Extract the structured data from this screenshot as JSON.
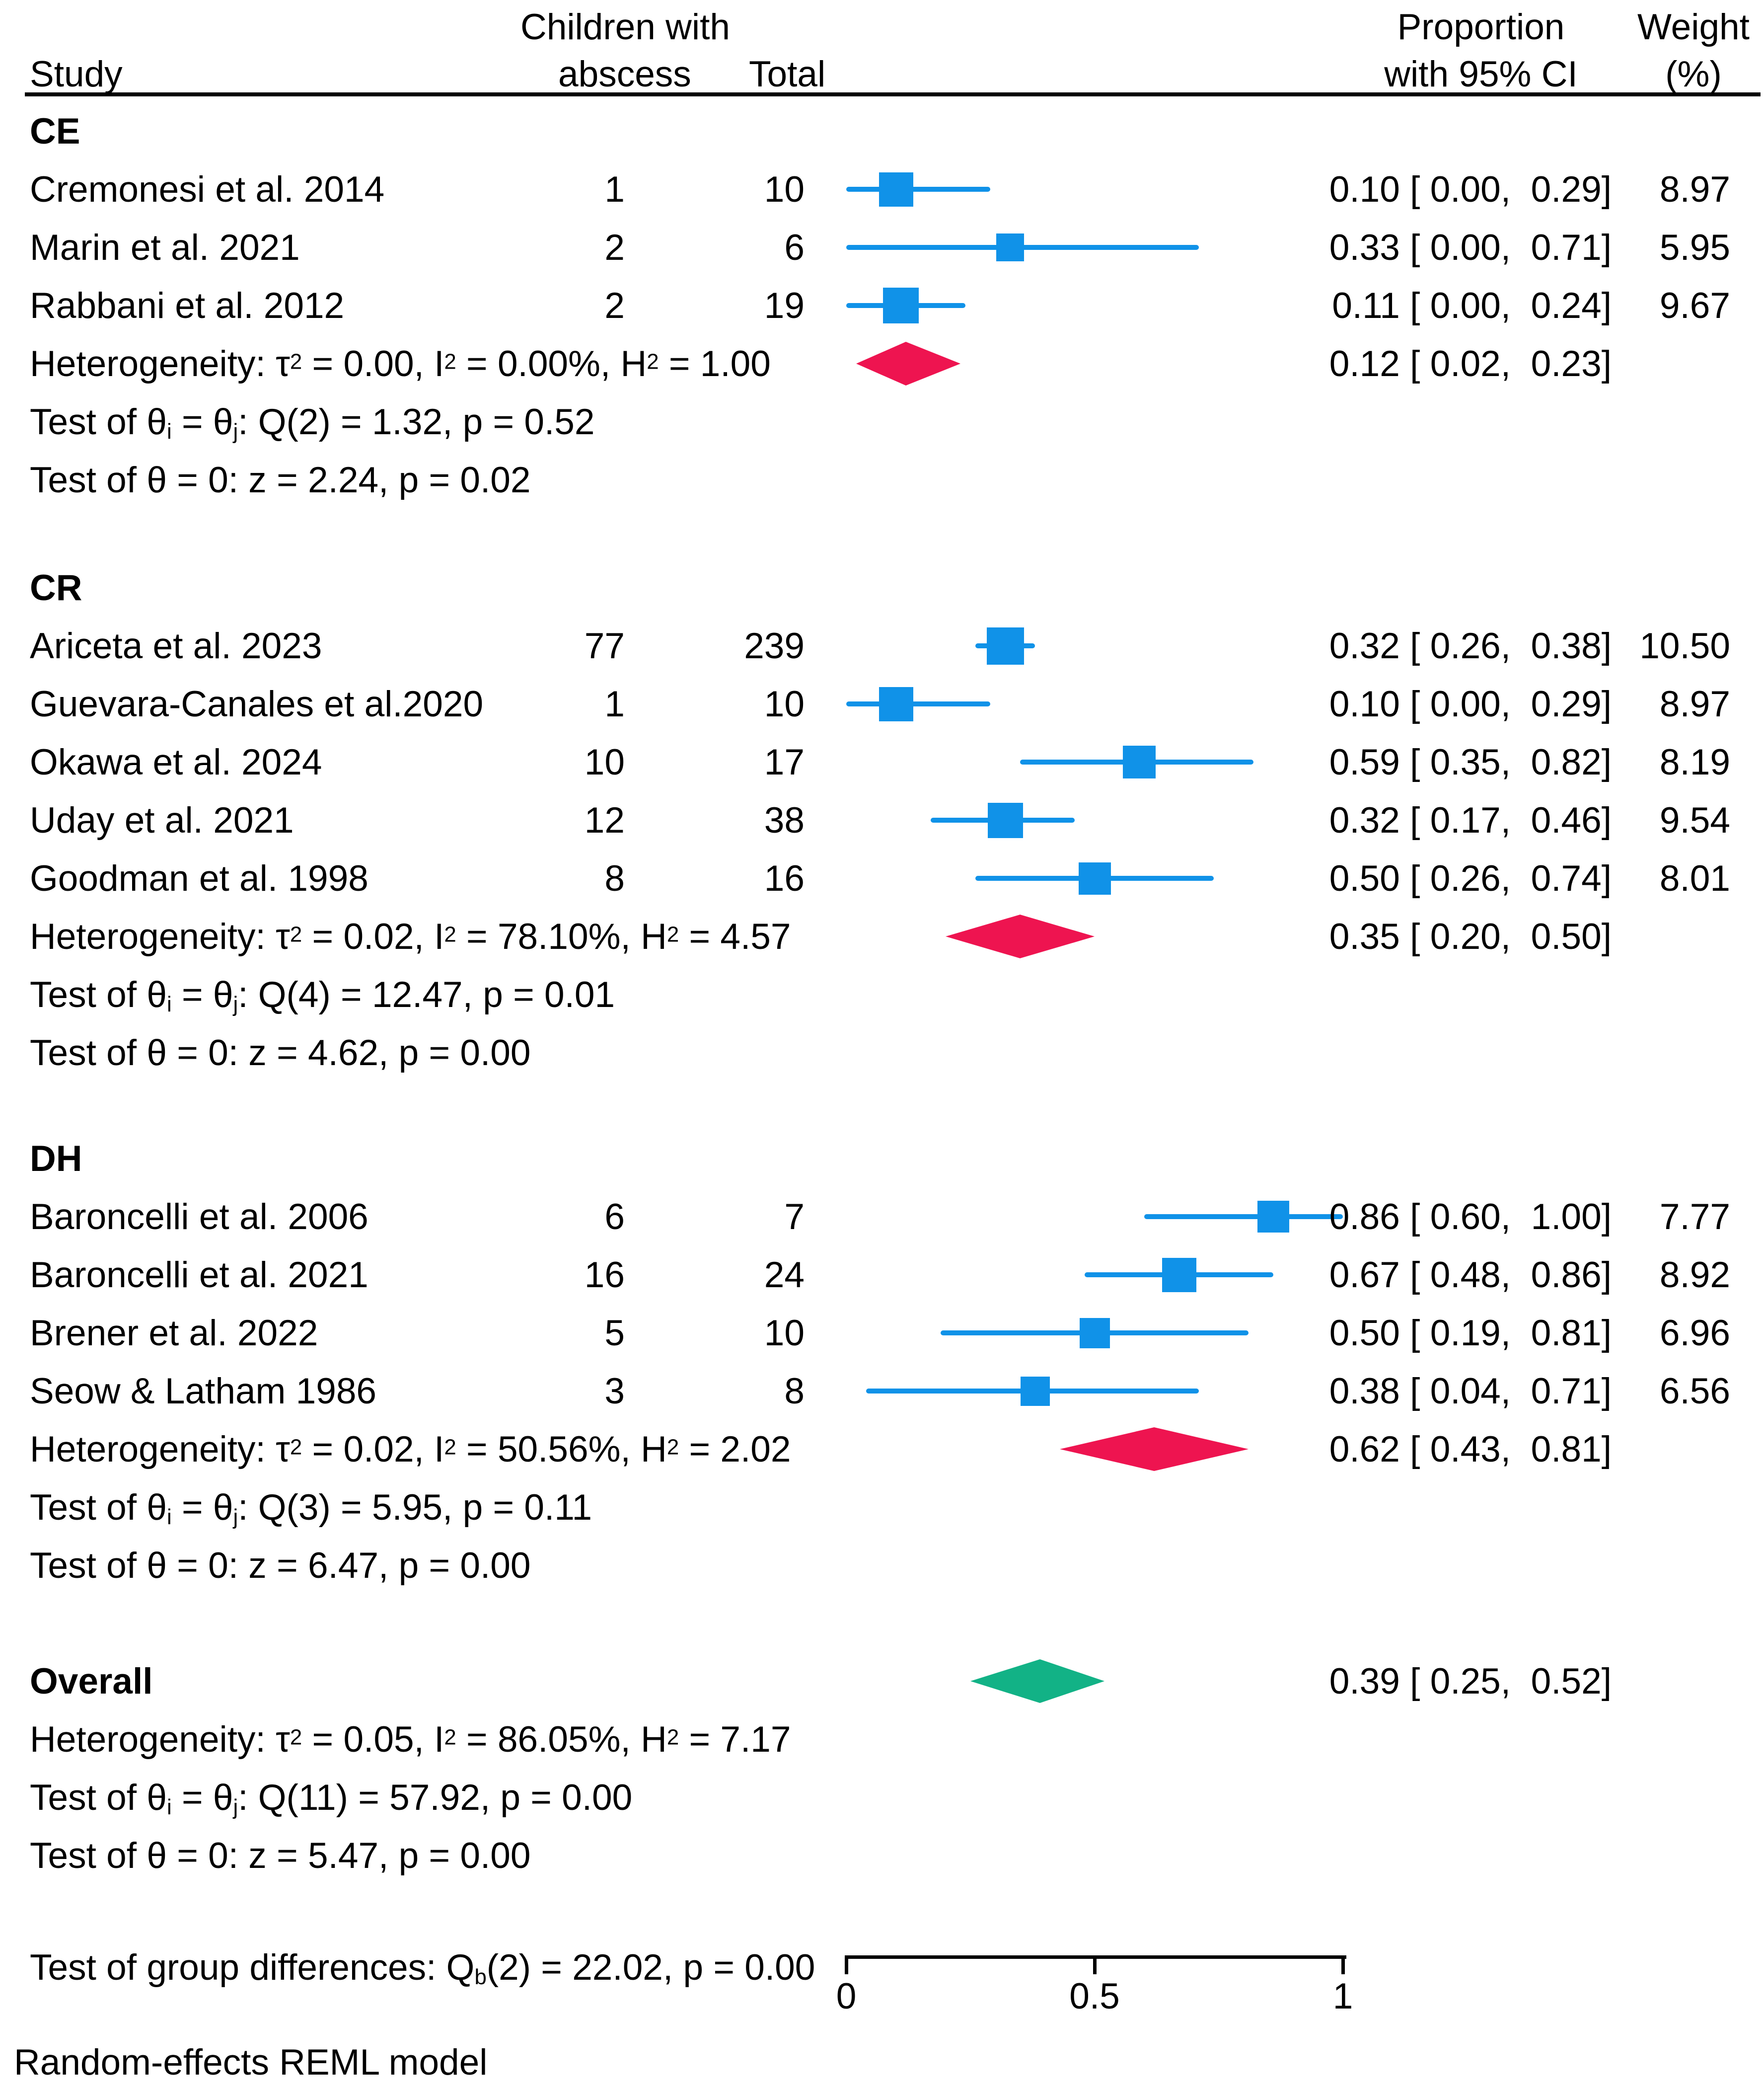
{
  "header": {
    "study": "Study",
    "events_line1": "Children with",
    "events_line2": "abscess",
    "total": "Total",
    "proportion_line1": "Proportion",
    "proportion_line2": "with 95% CI",
    "weight_line1": "Weight",
    "weight_line2": "(%)"
  },
  "footer": {
    "note": "Random-effects REML model"
  },
  "axis": {
    "min": 0,
    "max": 1,
    "ticks": [
      "0",
      "0.5",
      "1"
    ],
    "tick_values": [
      0,
      0.5,
      1
    ]
  },
  "colors": {
    "marker_blue": "#1092E8",
    "group_diamond_red": "#EE1450",
    "overall_diamond_green": "#12B286",
    "text": "#000000"
  },
  "chart_data": {
    "type": "forest",
    "title": "",
    "xlabel": "",
    "xlim": [
      0,
      1
    ],
    "legend": "none",
    "groups": [
      {
        "label": "CE",
        "studies": [
          {
            "label": "Cremonesi et al. 2014",
            "events": "1",
            "total": "10",
            "est": 0.1,
            "lo": 0.0,
            "hi": 0.29,
            "ci_text": "0.10 [ 0.00,  0.29]",
            "weight": 8.97,
            "weight_text": "8.97"
          },
          {
            "label": "Marin et al. 2021",
            "events": "2",
            "total": "6",
            "est": 0.33,
            "lo": 0.0,
            "hi": 0.71,
            "ci_text": "0.33 [ 0.00,  0.71]",
            "weight": 5.95,
            "weight_text": "5.95"
          },
          {
            "label": "Rabbani et al. 2012",
            "events": "2",
            "total": "19",
            "est": 0.11,
            "lo": 0.0,
            "hi": 0.24,
            "ci_text": "0.11 [ 0.00,  0.24]",
            "weight": 9.67,
            "weight_text": "9.67"
          }
        ],
        "summary": {
          "est": 0.12,
          "lo": 0.02,
          "hi": 0.23,
          "ci_text": "0.12 [ 0.02,  0.23]"
        },
        "het_text": "Heterogeneity: τ^{2} = 0.00, I^{2} = 0.00%, H^{2} = 1.00",
        "test1_text": "Test of θ_{i} = θ_{j}: Q(2) = 1.32, p = 0.52",
        "test2_text": "Test of θ = 0: z = 2.24, p = 0.02"
      },
      {
        "label": "CR",
        "studies": [
          {
            "label": "Ariceta et al. 2023",
            "events": "77",
            "total": "239",
            "est": 0.32,
            "lo": 0.26,
            "hi": 0.38,
            "ci_text": "0.32 [ 0.26,  0.38]",
            "weight": 10.5,
            "weight_text": "10.50"
          },
          {
            "label": "Guevara-Canales et al.2020",
            "events": "1",
            "total": "10",
            "est": 0.1,
            "lo": 0.0,
            "hi": 0.29,
            "ci_text": "0.10 [ 0.00,  0.29]",
            "weight": 8.97,
            "weight_text": "8.97"
          },
          {
            "label": "Okawa et al. 2024",
            "events": "10",
            "total": "17",
            "est": 0.59,
            "lo": 0.35,
            "hi": 0.82,
            "ci_text": "0.59 [ 0.35,  0.82]",
            "weight": 8.19,
            "weight_text": "8.19"
          },
          {
            "label": "Uday et al. 2021",
            "events": "12",
            "total": "38",
            "est": 0.32,
            "lo": 0.17,
            "hi": 0.46,
            "ci_text": "0.32 [ 0.17,  0.46]",
            "weight": 9.54,
            "weight_text": "9.54"
          },
          {
            "label": "Goodman et al. 1998",
            "events": "8",
            "total": "16",
            "est": 0.5,
            "lo": 0.26,
            "hi": 0.74,
            "ci_text": "0.50 [ 0.26,  0.74]",
            "weight": 8.01,
            "weight_text": "8.01"
          }
        ],
        "summary": {
          "est": 0.35,
          "lo": 0.2,
          "hi": 0.5,
          "ci_text": "0.35 [ 0.20,  0.50]"
        },
        "het_text": "Heterogeneity: τ^{2} = 0.02, I^{2} = 78.10%, H^{2} = 4.57",
        "test1_text": "Test of θ_{i} = θ_{j}: Q(4) = 12.47, p = 0.01",
        "test2_text": "Test of θ = 0: z = 4.62, p = 0.00"
      },
      {
        "label": "DH",
        "studies": [
          {
            "label": "Baroncelli et al. 2006",
            "events": "6",
            "total": "7",
            "est": 0.86,
            "lo": 0.6,
            "hi": 1.0,
            "ci_text": "0.86 [ 0.60,  1.00]",
            "weight": 7.77,
            "weight_text": "7.77"
          },
          {
            "label": "Baroncelli et al. 2021",
            "events": "16",
            "total": "24",
            "est": 0.67,
            "lo": 0.48,
            "hi": 0.86,
            "ci_text": "0.67 [ 0.48,  0.86]",
            "weight": 8.92,
            "weight_text": "8.92"
          },
          {
            "label": "Brener et al. 2022",
            "events": "5",
            "total": "10",
            "est": 0.5,
            "lo": 0.19,
            "hi": 0.81,
            "ci_text": "0.50 [ 0.19,  0.81]",
            "weight": 6.96,
            "weight_text": "6.96"
          },
          {
            "label": "Seow & Latham 1986",
            "events": "3",
            "total": "8",
            "est": 0.38,
            "lo": 0.04,
            "hi": 0.71,
            "ci_text": "0.38 [ 0.04,  0.71]",
            "weight": 6.56,
            "weight_text": "6.56"
          }
        ],
        "summary": {
          "est": 0.62,
          "lo": 0.43,
          "hi": 0.81,
          "ci_text": "0.62 [ 0.43,  0.81]"
        },
        "het_text": "Heterogeneity: τ^{2} = 0.02, I^{2} = 50.56%, H^{2} = 2.02",
        "test1_text": "Test of θ_{i} = θ_{j}: Q(3) = 5.95, p = 0.11",
        "test2_text": "Test of θ = 0: z = 6.47, p = 0.00"
      }
    ],
    "overall": {
      "label": "Overall",
      "summary": {
        "est": 0.39,
        "lo": 0.25,
        "hi": 0.52,
        "ci_text": "0.39 [ 0.25,  0.52]"
      },
      "het_text": "Heterogeneity: τ^{2} = 0.05, I^{2} = 86.05%, H^{2} = 7.17",
      "test1_text": "Test of θ_{i} = θ_{j}: Q(11) = 57.92, p = 0.00",
      "test2_text": "Test of θ = 0: z = 5.47, p = 0.00"
    },
    "group_difference_text": "Test of group differences: Q_{b}(2) = 22.02, p = 0.00"
  }
}
